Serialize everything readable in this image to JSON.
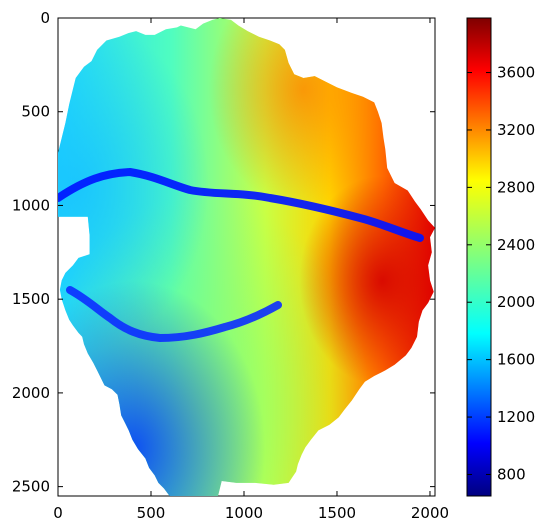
{
  "chart_data": {
    "type": "heatmap",
    "title": "",
    "xlabel": "",
    "ylabel": "",
    "xlim": [
      0,
      2027
    ],
    "ylim": [
      2550,
      0
    ],
    "y_axis_inverted": true,
    "x_ticks": [
      "0",
      "500",
      "1000",
      "1500",
      "2000"
    ],
    "y_ticks": [
      "0",
      "500",
      "1000",
      "1500",
      "2000",
      "2500"
    ],
    "x_tick_values": [
      0,
      500,
      1000,
      1500,
      2000
    ],
    "y_tick_values": [
      0,
      500,
      1000,
      1500,
      2000,
      2500
    ],
    "colormap": "jet",
    "colorbar": {
      "vmin": 650,
      "vmax": 3980,
      "ticks": [
        "800",
        "1200",
        "1600",
        "2000",
        "2400",
        "2800",
        "3200",
        "3600"
      ],
      "tick_values": [
        800,
        1200,
        1600,
        2000,
        2400,
        2800,
        3200,
        3600
      ]
    },
    "grid": false,
    "legend": "none",
    "description_values": {
      "low_channel_1": "elevation minimum near 700-1000 along valley from x=0,y=950 to x=1300,y=950",
      "high_region": "elevation maximum near 3600-3900 along east edge x=1600-2000"
    },
    "boundary": [
      [
        95,
        320
      ],
      [
        140,
        260
      ],
      [
        180,
        230
      ],
      [
        210,
        170
      ],
      [
        260,
        120
      ],
      [
        330,
        100
      ],
      [
        380,
        80
      ],
      [
        420,
        70
      ],
      [
        470,
        90
      ],
      [
        520,
        90
      ],
      [
        580,
        60
      ],
      [
        640,
        50
      ],
      [
        660,
        40
      ],
      [
        700,
        50
      ],
      [
        740,
        60
      ],
      [
        780,
        30
      ],
      [
        830,
        10
      ],
      [
        870,
        0
      ],
      [
        930,
        10
      ],
      [
        970,
        40
      ],
      [
        1020,
        70
      ],
      [
        1080,
        100
      ],
      [
        1140,
        120
      ],
      [
        1190,
        140
      ],
      [
        1220,
        170
      ],
      [
        1240,
        240
      ],
      [
        1270,
        300
      ],
      [
        1320,
        320
      ],
      [
        1380,
        310
      ],
      [
        1440,
        340
      ],
      [
        1500,
        370
      ],
      [
        1580,
        400
      ],
      [
        1640,
        420
      ],
      [
        1700,
        450
      ],
      [
        1720,
        500
      ],
      [
        1740,
        560
      ],
      [
        1750,
        640
      ],
      [
        1760,
        700
      ],
      [
        1770,
        800
      ],
      [
        1810,
        880
      ],
      [
        1880,
        920
      ],
      [
        1920,
        980
      ],
      [
        1950,
        1020
      ],
      [
        1990,
        1080
      ],
      [
        2027,
        1120
      ],
      [
        2000,
        1170
      ],
      [
        2010,
        1250
      ],
      [
        1990,
        1320
      ],
      [
        2000,
        1400
      ],
      [
        2020,
        1460
      ],
      [
        1990,
        1520
      ],
      [
        1960,
        1560
      ],
      [
        1940,
        1620
      ],
      [
        1930,
        1700
      ],
      [
        1900,
        1760
      ],
      [
        1870,
        1800
      ],
      [
        1810,
        1850
      ],
      [
        1760,
        1880
      ],
      [
        1700,
        1910
      ],
      [
        1650,
        1940
      ],
      [
        1620,
        1980
      ],
      [
        1580,
        2040
      ],
      [
        1540,
        2090
      ],
      [
        1510,
        2130
      ],
      [
        1460,
        2170
      ],
      [
        1400,
        2200
      ],
      [
        1360,
        2250
      ],
      [
        1330,
        2290
      ],
      [
        1310,
        2330
      ],
      [
        1290,
        2380
      ],
      [
        1280,
        2420
      ],
      [
        1260,
        2450
      ],
      [
        1240,
        2480
      ],
      [
        1160,
        2490
      ],
      [
        1060,
        2480
      ],
      [
        960,
        2480
      ],
      [
        880,
        2470
      ],
      [
        860,
        2550
      ],
      [
        840,
        2550
      ],
      [
        700,
        2550
      ],
      [
        600,
        2550
      ],
      [
        570,
        2510
      ],
      [
        540,
        2480
      ],
      [
        520,
        2440
      ],
      [
        490,
        2400
      ],
      [
        470,
        2350
      ],
      [
        430,
        2300
      ],
      [
        400,
        2250
      ],
      [
        380,
        2200
      ],
      [
        360,
        2160
      ],
      [
        340,
        2120
      ],
      [
        330,
        2060
      ],
      [
        320,
        2010
      ],
      [
        290,
        1980
      ],
      [
        250,
        1960
      ],
      [
        230,
        1920
      ],
      [
        210,
        1880
      ],
      [
        190,
        1840
      ],
      [
        160,
        1790
      ],
      [
        140,
        1740
      ],
      [
        130,
        1700
      ],
      [
        110,
        1680
      ],
      [
        80,
        1640
      ],
      [
        60,
        1610
      ],
      [
        40,
        1560
      ],
      [
        20,
        1500
      ],
      [
        10,
        1450
      ],
      [
        20,
        1400
      ],
      [
        40,
        1360
      ],
      [
        80,
        1320
      ],
      [
        110,
        1280
      ],
      [
        170,
        1260
      ],
      [
        170,
        1160
      ],
      [
        160,
        1060
      ],
      [
        110,
        1060
      ],
      [
        60,
        1060
      ],
      [
        0,
        1060
      ],
      [
        0,
        720
      ],
      [
        20,
        640
      ],
      [
        40,
        560
      ],
      [
        60,
        460
      ],
      [
        80,
        380
      ]
    ]
  }
}
